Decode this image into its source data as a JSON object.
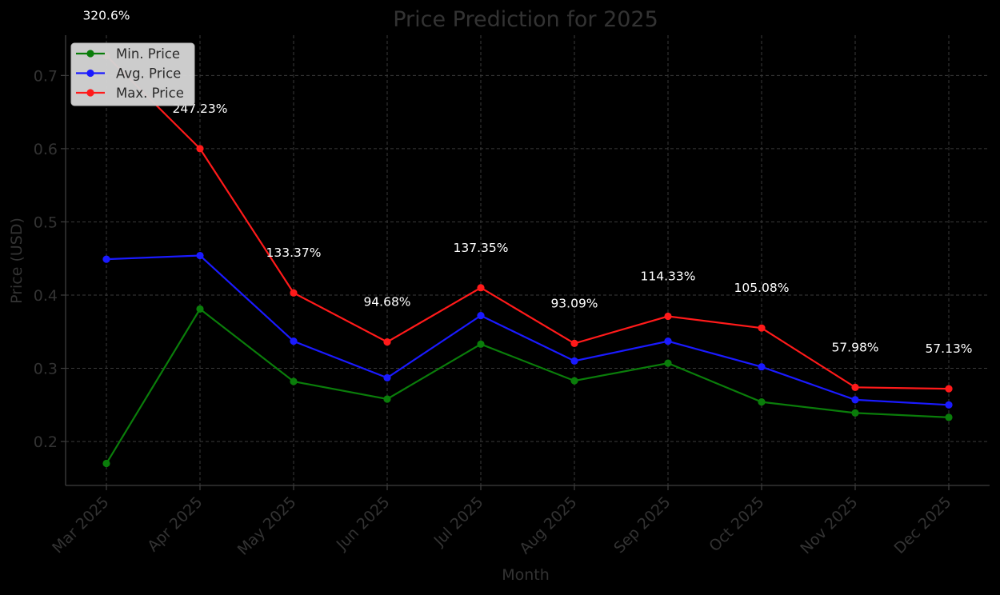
{
  "chart_data": {
    "type": "line",
    "title": "Price Prediction for 2025",
    "xlabel": "Month",
    "ylabel": "Price (USD)",
    "categories": [
      "Mar 2025",
      "Apr 2025",
      "May 2025",
      "Jun 2025",
      "Jul 2025",
      "Aug 2025",
      "Sep 2025",
      "Oct 2025",
      "Nov 2025",
      "Dec 2025"
    ],
    "series": [
      {
        "name": "Min. Price",
        "color": "#0a7d0a",
        "values": [
          0.17,
          0.381,
          0.282,
          0.258,
          0.333,
          0.283,
          0.307,
          0.254,
          0.239,
          0.233
        ]
      },
      {
        "name": "Avg. Price",
        "color": "#1a1aff",
        "values": [
          0.449,
          0.454,
          0.337,
          0.287,
          0.372,
          0.31,
          0.337,
          0.302,
          0.257,
          0.25
        ]
      },
      {
        "name": "Max. Price",
        "color": "#ff1a1a",
        "values": [
          0.727,
          0.6,
          0.403,
          0.336,
          0.41,
          0.334,
          0.371,
          0.355,
          0.274,
          0.272
        ]
      }
    ],
    "annotations": [
      "320.6%",
      "247.23%",
      "133.37%",
      "94.68%",
      "137.35%",
      "93.09%",
      "114.33%",
      "105.08%",
      "57.98%",
      "57.13%"
    ],
    "ylim": [
      0.14,
      0.755
    ],
    "yticks": [
      0.2,
      0.3,
      0.4,
      0.5,
      0.6,
      0.7
    ],
    "ytick_labels": [
      "0.2",
      "0.3",
      "0.4",
      "0.5",
      "0.6",
      "0.7"
    ],
    "grid": true,
    "legend": "top-left",
    "background": "#000000"
  }
}
